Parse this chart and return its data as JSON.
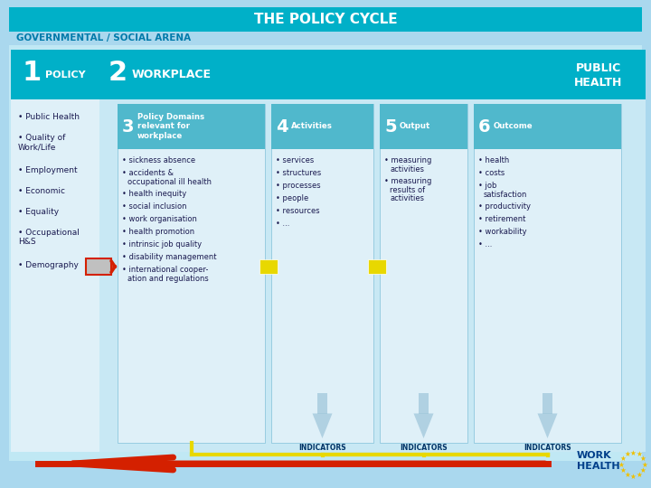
{
  "title": "THE POLICY CYCLE",
  "subtitle": "GOVERNMENTAL / SOCIAL ARENA",
  "bg_outer": "#aad8ee",
  "bg_title": "#00b0c8",
  "bg_main": "#c0e8f4",
  "title_color": "#ffffff",
  "subtitle_color": "#007aaa",
  "box1_items": [
    "Public Health",
    "Quality of\nWork/Life",
    "Employment",
    "Economic",
    "Equality",
    "Occupational\nH&S",
    "Demography"
  ],
  "box3_title_num": "3",
  "box3_title": "Policy Domains\nrelevant for\nworkplace",
  "box3_items": [
    "sickness absence",
    "accidents &\noccupational ill health",
    "health inequity",
    "social inclusion",
    "work organisation",
    "health promotion",
    "intrinsic job quality",
    "disability management",
    "international cooper-\nation and regulations"
  ],
  "box4_title_num": "4",
  "box4_title": "Activities",
  "box4_items": [
    "services",
    "structures",
    "processes",
    "people",
    "resources",
    "..."
  ],
  "box5_title_num": "5",
  "box5_title": "Output",
  "box5_items": [
    "measuring\nactivities",
    "measuring\nresults of\nactivities"
  ],
  "box6_title_num": "6",
  "box6_title": "Outcome",
  "box6_items": [
    "health",
    "costs",
    "job\nsatisfaction",
    "productivity",
    "retirement",
    "workability",
    "..."
  ],
  "indicators_label": "INDICATORS",
  "work_health_color": "#003f8a",
  "stars_color": "#f0c000",
  "arrow_red": "#d42000",
  "arrow_yellow": "#e8d800",
  "arrow_blue": "#8ab8d0",
  "inner_bg": "#dff0f8",
  "inner_header_bg": "#50b8cc",
  "col1_bg": "#dff0f8",
  "col2_bg": "#c8e8f4",
  "item_color": "#1a1a50"
}
